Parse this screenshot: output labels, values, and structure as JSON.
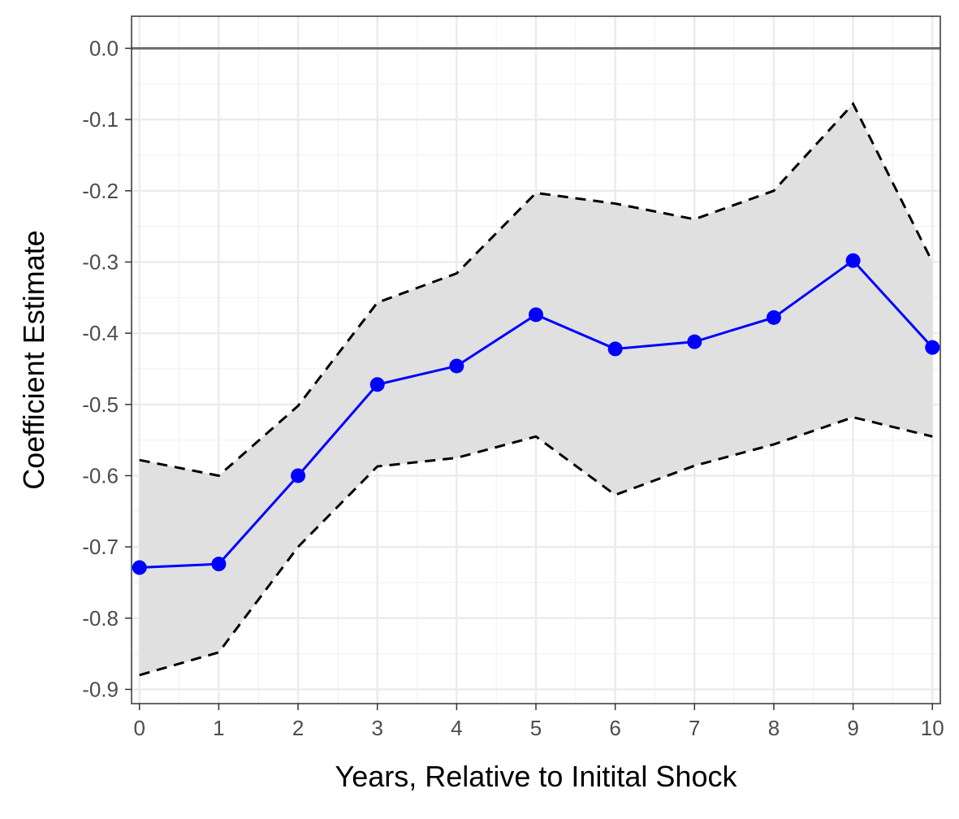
{
  "chart_data": {
    "type": "line",
    "title": "",
    "xlabel": "Years, Relative to Initital Shock",
    "ylabel": "Coefficient Estimate",
    "xlim": [
      -0.1,
      10.1
    ],
    "ylim": [
      -0.92,
      0.045
    ],
    "x_ticks": [
      0,
      1,
      2,
      3,
      4,
      5,
      6,
      7,
      8,
      9,
      10
    ],
    "y_ticks": [
      0.0,
      -0.1,
      -0.2,
      -0.3,
      -0.4,
      -0.5,
      -0.6,
      -0.7,
      -0.8,
      -0.9
    ],
    "y_tick_labels": [
      "0.0",
      "-0.1",
      "-0.2",
      "-0.3",
      "-0.4",
      "-0.5",
      "-0.6",
      "-0.7",
      "-0.8",
      "-0.9"
    ],
    "x": [
      0,
      1,
      2,
      3,
      4,
      5,
      6,
      7,
      8,
      9,
      10
    ],
    "series": [
      {
        "values": [
          -0.729,
          -0.724,
          -0.6,
          -0.472,
          -0.446,
          -0.374,
          -0.422,
          -0.412,
          -0.378,
          -0.298,
          -0.42
        ],
        "color": "#0000ff",
        "style": "line-with-points"
      }
    ],
    "ci_upper": [
      -0.578,
      -0.6,
      -0.502,
      -0.357,
      -0.316,
      -0.203,
      -0.218,
      -0.24,
      -0.2,
      -0.078,
      -0.3
    ],
    "ci_lower": [
      -0.88,
      -0.848,
      -0.7,
      -0.587,
      -0.575,
      -0.545,
      -0.627,
      -0.586,
      -0.556,
      -0.518,
      -0.545
    ],
    "band_color": "#e0e0e0",
    "ci_line_color": "#000000",
    "reference_line": {
      "y": 0.0,
      "color": "#707070"
    },
    "grid": true,
    "legend": "none"
  }
}
